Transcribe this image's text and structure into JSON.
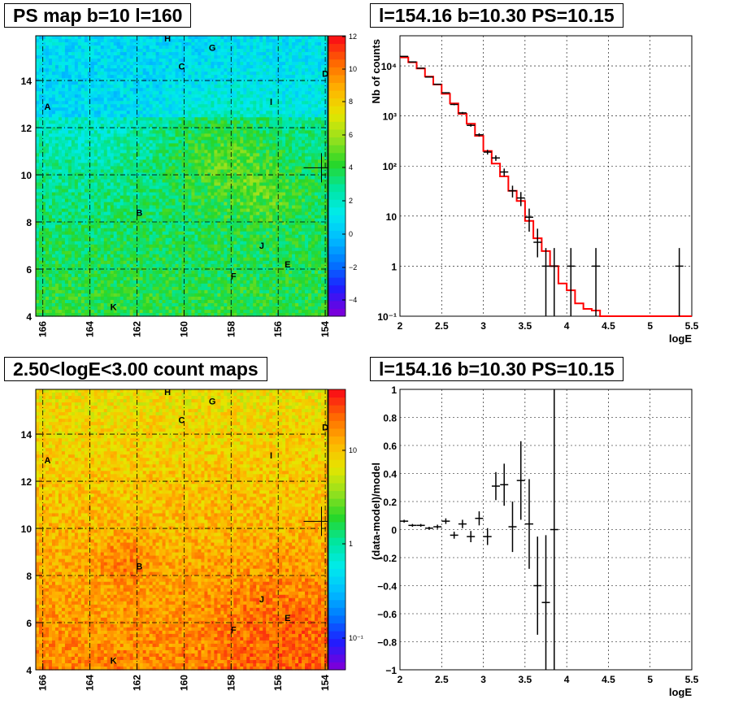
{
  "panels": {
    "tl_title": "PS map b=10 l=160",
    "tr_title": "l=154.16 b=10.30 PS=10.15",
    "bl_title": "2.50<logE<3.00 count maps",
    "br_title": "l=154.16 b=10.30 PS=10.15"
  },
  "colors": {
    "model_line": "#ff0000",
    "data_points": "#000000"
  },
  "chart_data": [
    {
      "type": "heatmap",
      "title": "PS map b=10 l=160",
      "x_ticks": [
        "166",
        "164",
        "162",
        "160",
        "158",
        "156",
        "154"
      ],
      "y_ticks": [
        "4",
        "6",
        "8",
        "10",
        "12",
        "14"
      ],
      "xlim": [
        166.3,
        153.9
      ],
      "ylim": [
        4,
        15.9
      ],
      "z_ticks": [
        "12",
        "10",
        "8",
        "6",
        "4",
        "2",
        "0",
        "−2",
        "−4"
      ],
      "zlim": [
        -5,
        12
      ],
      "grid": true,
      "sources": [
        {
          "label": "A",
          "l": 165.8,
          "b": 12.9
        },
        {
          "label": "B",
          "l": 161.9,
          "b": 8.4
        },
        {
          "label": "C",
          "l": 160.1,
          "b": 14.6
        },
        {
          "label": "D",
          "l": 154.0,
          "b": 14.3
        },
        {
          "label": "E",
          "l": 155.6,
          "b": 6.2
        },
        {
          "label": "F",
          "l": 157.9,
          "b": 5.7
        },
        {
          "label": "G",
          "l": 158.8,
          "b": 15.4
        },
        {
          "label": "H",
          "l": 160.7,
          "b": 15.8
        },
        {
          "label": "I",
          "l": 156.3,
          "b": 13.1
        },
        {
          "label": "J",
          "l": 156.7,
          "b": 7.0
        },
        {
          "label": "K",
          "l": 163.0,
          "b": 4.4
        }
      ]
    },
    {
      "type": "line",
      "title": "l=154.16 b=10.30 PS=10.15",
      "xlabel": "logE",
      "ylabel": "Nb of counts",
      "x_ticks": [
        "2",
        "2.5",
        "3",
        "3.5",
        "4",
        "4.5",
        "5",
        "5.5"
      ],
      "y_ticks": [
        "10⁻¹",
        "1",
        "10",
        "10²",
        "10³",
        "10⁴"
      ],
      "xlim": [
        2,
        5.5
      ],
      "ylim": [
        0.1,
        40000
      ],
      "ylog": true,
      "bin_edges": [
        2.0,
        2.1,
        2.2,
        2.3,
        2.4,
        2.5,
        2.6,
        2.7,
        2.8,
        2.9,
        3.0,
        3.1,
        3.2,
        3.3,
        3.4,
        3.5,
        3.6,
        3.7,
        3.8,
        3.9,
        4.0,
        4.1,
        4.2,
        4.3,
        4.4,
        5.5
      ],
      "model": [
        14800,
        11800,
        8900,
        6100,
        4250,
        2780,
        1780,
        1100,
        700,
        400,
        200,
        112,
        62,
        32,
        20,
        8,
        3.6,
        2,
        1,
        0.45,
        0.33,
        0.18,
        0.14,
        0.13,
        0.1
      ],
      "data_x": [
        2.05,
        2.15,
        2.25,
        2.35,
        2.45,
        2.55,
        2.65,
        2.75,
        2.85,
        2.95,
        3.05,
        3.15,
        3.25,
        3.35,
        3.45,
        3.55,
        3.65,
        3.75,
        3.85,
        4.05,
        4.35,
        5.35
      ],
      "data_y": [
        15500,
        12000,
        9000,
        6000,
        4300,
        2900,
        1700,
        1150,
        650,
        420,
        190,
        145,
        76,
        32,
        23,
        9.5,
        3,
        1,
        1,
        1,
        1,
        1
      ],
      "grid": true
    },
    {
      "type": "heatmap",
      "title": "2.50<logE<3.00 count maps",
      "x_ticks": [
        "166",
        "164",
        "162",
        "160",
        "158",
        "156",
        "154"
      ],
      "y_ticks": [
        "4",
        "6",
        "8",
        "10",
        "12",
        "14"
      ],
      "z_ticks": [
        "10",
        "1",
        "10⁻¹"
      ],
      "zlog": true,
      "grid": true
    },
    {
      "type": "scatter",
      "title": "l=154.16 b=10.30 PS=10.15",
      "xlabel": "logE",
      "ylabel": "(data-model)/model",
      "x_ticks": [
        "2",
        "2.5",
        "3",
        "3.5",
        "4",
        "4.5",
        "5",
        "5.5"
      ],
      "y_ticks": [
        "−1",
        "−0.8",
        "−0.6",
        "−0.4",
        "−0.2",
        "0",
        "0.2",
        "0.4",
        "0.6",
        "0.8",
        "1"
      ],
      "xlim": [
        2,
        5.5
      ],
      "ylim": [
        -1,
        1
      ],
      "x": [
        2.05,
        2.15,
        2.25,
        2.35,
        2.45,
        2.55,
        2.65,
        2.75,
        2.85,
        2.95,
        3.05,
        3.15,
        3.25,
        3.35,
        3.45,
        3.55,
        3.65,
        3.75,
        3.85
      ],
      "y": [
        0.06,
        0.03,
        0.03,
        0.01,
        0.02,
        0.06,
        -0.04,
        0.04,
        -0.05,
        0.08,
        -0.05,
        0.31,
        0.32,
        0.02,
        0.35,
        0.04,
        -0.4,
        -0.52,
        0.0
      ],
      "yerr": [
        0.01,
        0.01,
        0.01,
        0.01,
        0.015,
        0.02,
        0.025,
        0.03,
        0.04,
        0.05,
        0.06,
        0.1,
        0.15,
        0.18,
        0.28,
        0.32,
        0.35,
        0.48,
        1.2
      ],
      "grid": true
    }
  ]
}
